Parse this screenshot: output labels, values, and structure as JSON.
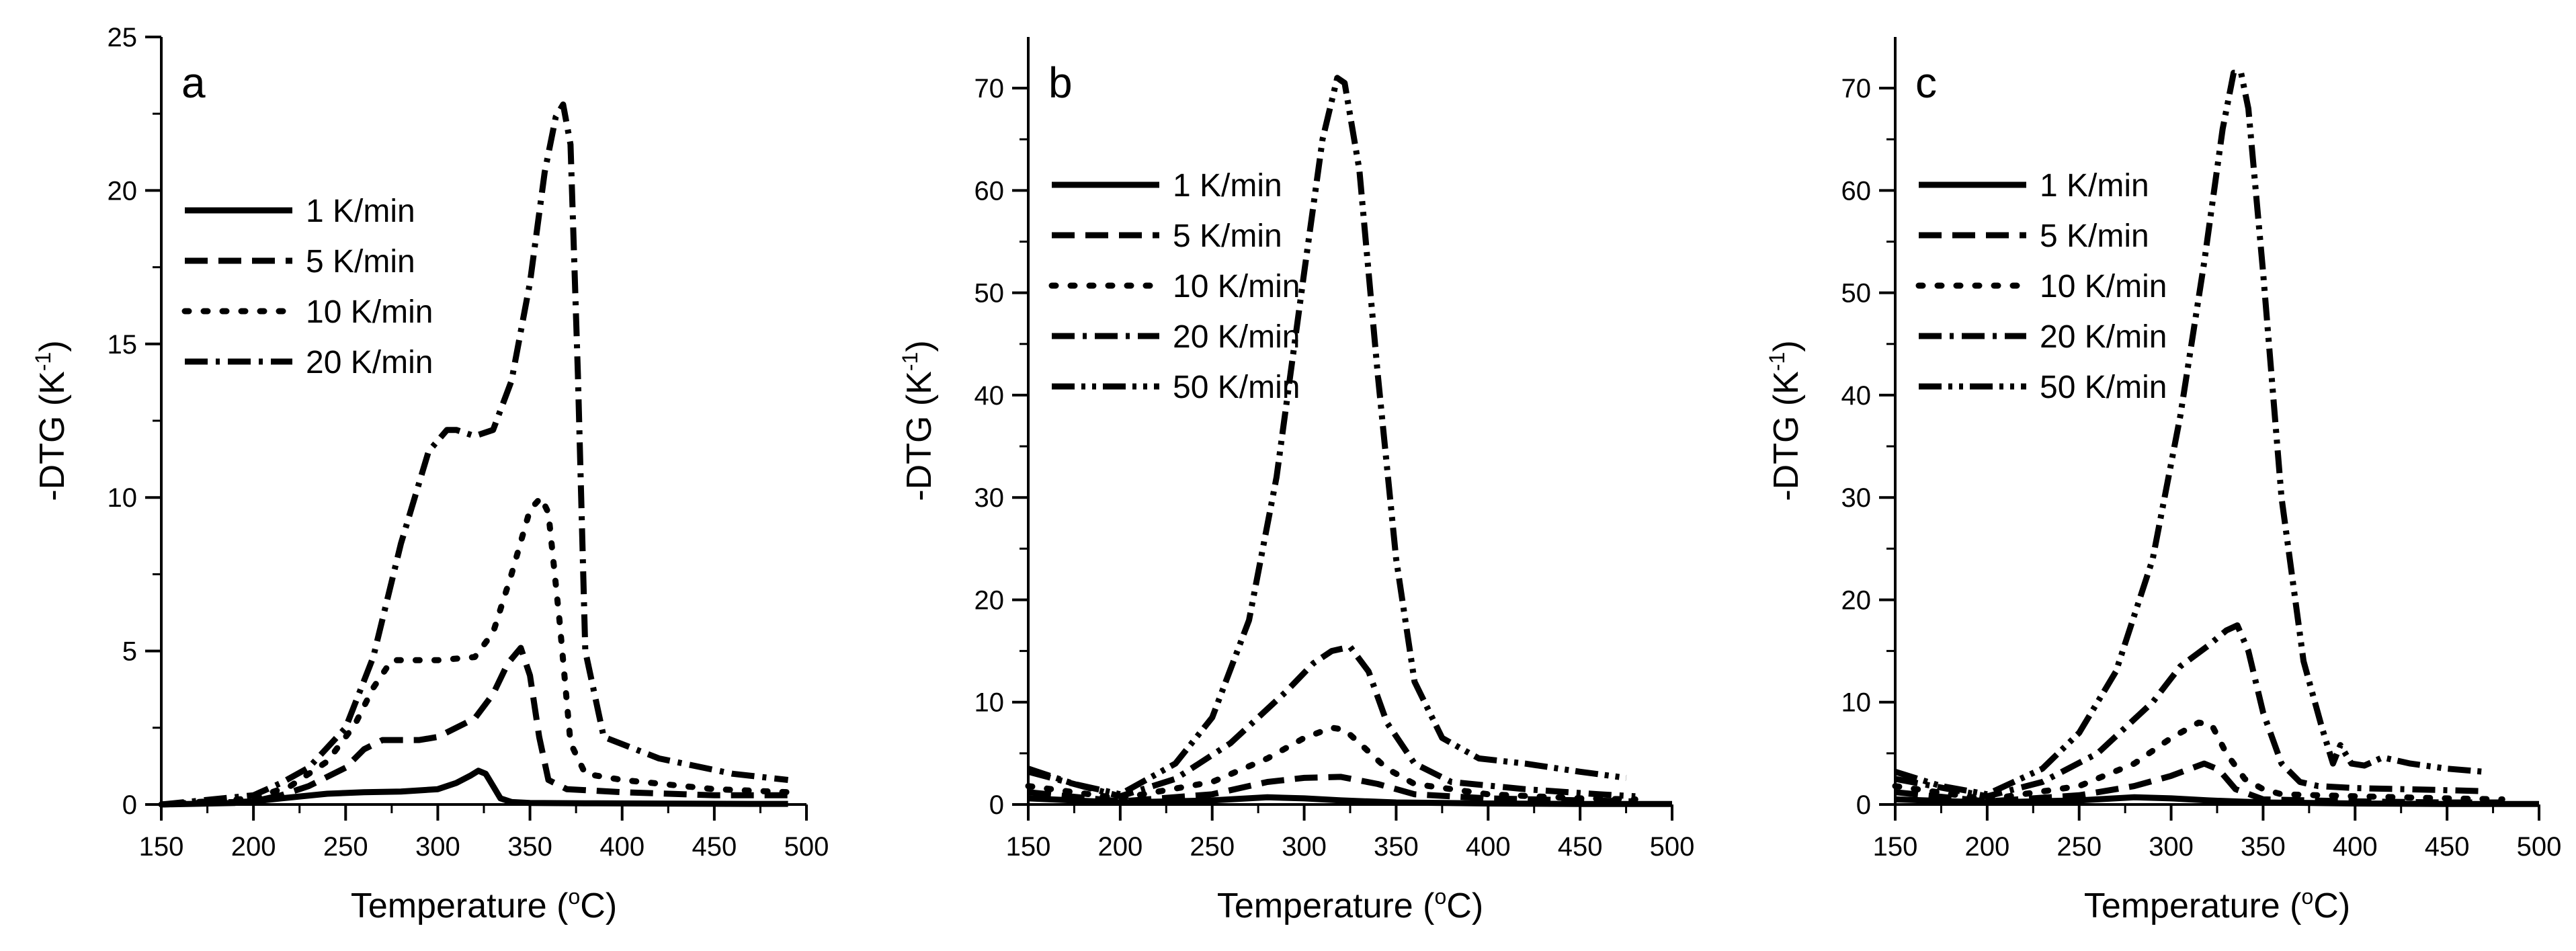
{
  "chart_data": [
    {
      "type": "line",
      "panel_label": "a",
      "xlabel": "Temperature (°C)",
      "xlabel_parts": {
        "prefix": "Temperature (",
        "sup": "o",
        "suffix": "C)"
      },
      "ylabel": "-DTG (K-1)",
      "ylabel_parts": {
        "prefix": "-DTG (K",
        "sup": "-1",
        "suffix": ")"
      },
      "xlim": [
        150,
        500
      ],
      "ylim": [
        0,
        25
      ],
      "xticks": [
        "150",
        "200",
        "250",
        "300",
        "350",
        "400",
        "450",
        "500"
      ],
      "yticks": [
        "0",
        "5",
        "10",
        "15",
        "20",
        "25"
      ],
      "legend_position": "upper-left",
      "series": [
        {
          "name": "1 K/min",
          "dash": "solid",
          "x": [
            150,
            190,
            200,
            215,
            240,
            260,
            280,
            300,
            310,
            318,
            322,
            326,
            330,
            334,
            340,
            350,
            380,
            420,
            470,
            490
          ],
          "y": [
            0,
            0.05,
            0.1,
            0.2,
            0.35,
            0.4,
            0.42,
            0.5,
            0.7,
            0.95,
            1.1,
            1.0,
            0.6,
            0.2,
            0.08,
            0.05,
            0.04,
            0.03,
            0.02,
            0.02
          ]
        },
        {
          "name": "5 K/min",
          "dash": "dash",
          "x": [
            150,
            200,
            215,
            230,
            250,
            260,
            270,
            290,
            300,
            320,
            330,
            338,
            345,
            350,
            355,
            360,
            370,
            400,
            450,
            490
          ],
          "y": [
            0,
            0.1,
            0.3,
            0.6,
            1.2,
            1.8,
            2.1,
            2.1,
            2.2,
            2.8,
            3.6,
            4.6,
            5.1,
            4.2,
            2.2,
            0.8,
            0.5,
            0.4,
            0.3,
            0.3
          ]
        },
        {
          "name": "10 K/min",
          "dash": "dot",
          "x": [
            150,
            200,
            220,
            240,
            255,
            265,
            275,
            300,
            320,
            330,
            340,
            350,
            356,
            360,
            366,
            372,
            380,
            400,
            450,
            490
          ],
          "y": [
            0,
            0.2,
            0.6,
            1.4,
            2.6,
            3.8,
            4.7,
            4.7,
            4.8,
            5.6,
            7.5,
            9.6,
            10.0,
            9.5,
            6.0,
            2.0,
            1.0,
            0.8,
            0.5,
            0.4
          ]
        },
        {
          "name": "20 K/min",
          "dash": "dashdot",
          "x": [
            150,
            200,
            215,
            230,
            250,
            265,
            280,
            295,
            305,
            310,
            320,
            330,
            340,
            350,
            358,
            364,
            368,
            372,
            376,
            380,
            390,
            420,
            460,
            490
          ],
          "y": [
            0,
            0.3,
            0.7,
            1.2,
            2.5,
            4.8,
            8.5,
            11.5,
            12.2,
            12.2,
            12.0,
            12.2,
            13.8,
            17.0,
            20.6,
            22.4,
            22.8,
            21.5,
            14.0,
            5.0,
            2.2,
            1.5,
            1.0,
            0.8
          ]
        }
      ]
    },
    {
      "type": "line",
      "panel_label": "b",
      "xlabel": "Temperature (°C)",
      "xlabel_parts": {
        "prefix": "Temperature (",
        "sup": "o",
        "suffix": "C)"
      },
      "ylabel": "-DTG (K-1)",
      "ylabel_parts": {
        "prefix": "-DTG (K",
        "sup": "-1",
        "suffix": ")"
      },
      "xlim": [
        150,
        500
      ],
      "ylim": [
        0,
        75
      ],
      "xticks": [
        "150",
        "200",
        "250",
        "300",
        "350",
        "400",
        "450",
        "500"
      ],
      "yticks": [
        "0",
        "10",
        "20",
        "30",
        "40",
        "50",
        "60",
        "70"
      ],
      "legend_position": "upper-left",
      "series": [
        {
          "name": "1 K/min",
          "dash": "solid",
          "x": [
            150,
            200,
            250,
            280,
            300,
            320,
            350,
            400,
            450,
            500
          ],
          "y": [
            0.6,
            0.2,
            0.4,
            0.7,
            0.6,
            0.4,
            0.2,
            0.1,
            0.05,
            0.05
          ]
        },
        {
          "name": "5 K/min",
          "dash": "dash",
          "x": [
            150,
            200,
            250,
            280,
            300,
            320,
            340,
            360,
            400,
            450,
            480
          ],
          "y": [
            1.2,
            0.3,
            1.0,
            2.2,
            2.6,
            2.7,
            2.0,
            1.0,
            0.6,
            0.4,
            0.3
          ]
        },
        {
          "name": "10 K/min",
          "dash": "dot",
          "x": [
            150,
            200,
            250,
            280,
            300,
            315,
            322,
            330,
            345,
            360,
            400,
            450,
            480
          ],
          "y": [
            1.8,
            0.6,
            2.2,
            4.5,
            6.5,
            7.5,
            7.3,
            6.0,
            3.5,
            2.0,
            1.0,
            0.6,
            0.5
          ]
        },
        {
          "name": "20 K/min",
          "dash": "dashdot",
          "x": [
            150,
            200,
            230,
            260,
            290,
            305,
            315,
            325,
            335,
            345,
            360,
            380,
            420,
            460,
            480
          ],
          "y": [
            3.2,
            0.8,
            2.5,
            6.0,
            11.0,
            13.8,
            15.0,
            15.4,
            13.0,
            8.0,
            4.0,
            2.2,
            1.5,
            1.0,
            0.8
          ]
        },
        {
          "name": "50 K/min",
          "dash": "dashdotdot",
          "x": [
            150,
            175,
            200,
            230,
            250,
            270,
            285,
            300,
            310,
            318,
            322,
            330,
            340,
            350,
            360,
            375,
            395,
            420,
            450,
            475
          ],
          "y": [
            3.5,
            2.0,
            1.0,
            4.0,
            8.5,
            18.0,
            32.0,
            52.0,
            65.0,
            71.0,
            70.5,
            62.0,
            42.0,
            24.0,
            12.0,
            6.5,
            4.5,
            4.0,
            3.2,
            2.6
          ]
        }
      ]
    },
    {
      "type": "line",
      "panel_label": "c",
      "xlabel": "Temperature (°C)",
      "xlabel_parts": {
        "prefix": "Temperature (",
        "sup": "o",
        "suffix": "C)"
      },
      "ylabel": "-DTG (K-1)",
      "ylabel_parts": {
        "prefix": "-DTG (K",
        "sup": "-1",
        "suffix": ")"
      },
      "xlim": [
        150,
        500
      ],
      "ylim": [
        0,
        75
      ],
      "xticks": [
        "150",
        "200",
        "250",
        "300",
        "350",
        "400",
        "450",
        "500"
      ],
      "yticks": [
        "0",
        "10",
        "20",
        "30",
        "40",
        "50",
        "60",
        "70"
      ],
      "legend_position": "upper-left",
      "series": [
        {
          "name": "1 K/min",
          "dash": "solid",
          "x": [
            150,
            200,
            250,
            280,
            300,
            320,
            350,
            400,
            450,
            500
          ],
          "y": [
            0.5,
            0.2,
            0.4,
            0.7,
            0.6,
            0.4,
            0.2,
            0.1,
            0.05,
            0.05
          ]
        },
        {
          "name": "5 K/min",
          "dash": "dash",
          "x": [
            150,
            200,
            250,
            280,
            300,
            318,
            326,
            335,
            350,
            400,
            450,
            480
          ],
          "y": [
            1.2,
            0.3,
            0.9,
            1.8,
            2.8,
            4.0,
            3.4,
            1.5,
            0.5,
            0.3,
            0.2,
            0.2
          ]
        },
        {
          "name": "10 K/min",
          "dash": "dot",
          "x": [
            150,
            200,
            250,
            280,
            300,
            315,
            322,
            330,
            340,
            350,
            360,
            400,
            450,
            480
          ],
          "y": [
            1.8,
            0.5,
            1.8,
            4.0,
            6.5,
            8.0,
            7.8,
            5.0,
            2.5,
            1.5,
            1.0,
            0.8,
            0.6,
            0.5
          ]
        },
        {
          "name": "20 K/min",
          "dash": "dashdot",
          "x": [
            150,
            200,
            230,
            260,
            290,
            305,
            320,
            330,
            336,
            342,
            350,
            360,
            370,
            380,
            400,
            450,
            470
          ],
          "y": [
            2.5,
            0.8,
            2.2,
            5.0,
            10.0,
            13.5,
            15.5,
            17.0,
            17.5,
            15.0,
            9.0,
            4.0,
            2.2,
            1.8,
            1.6,
            1.4,
            1.3
          ]
        },
        {
          "name": "50 K/min",
          "dash": "dashdotdot",
          "x": [
            150,
            175,
            200,
            230,
            250,
            270,
            290,
            305,
            318,
            328,
            334,
            338,
            342,
            350,
            360,
            372,
            382,
            388,
            392,
            398,
            405,
            415,
            430,
            450,
            470
          ],
          "y": [
            3.2,
            1.8,
            1.0,
            3.5,
            7.0,
            13.0,
            24.0,
            38.0,
            53.0,
            66.0,
            71.5,
            71.5,
            68.0,
            52.0,
            30.0,
            14.0,
            7.5,
            4.0,
            5.8,
            4.0,
            3.8,
            4.6,
            4.0,
            3.5,
            3.2
          ]
        }
      ]
    }
  ]
}
